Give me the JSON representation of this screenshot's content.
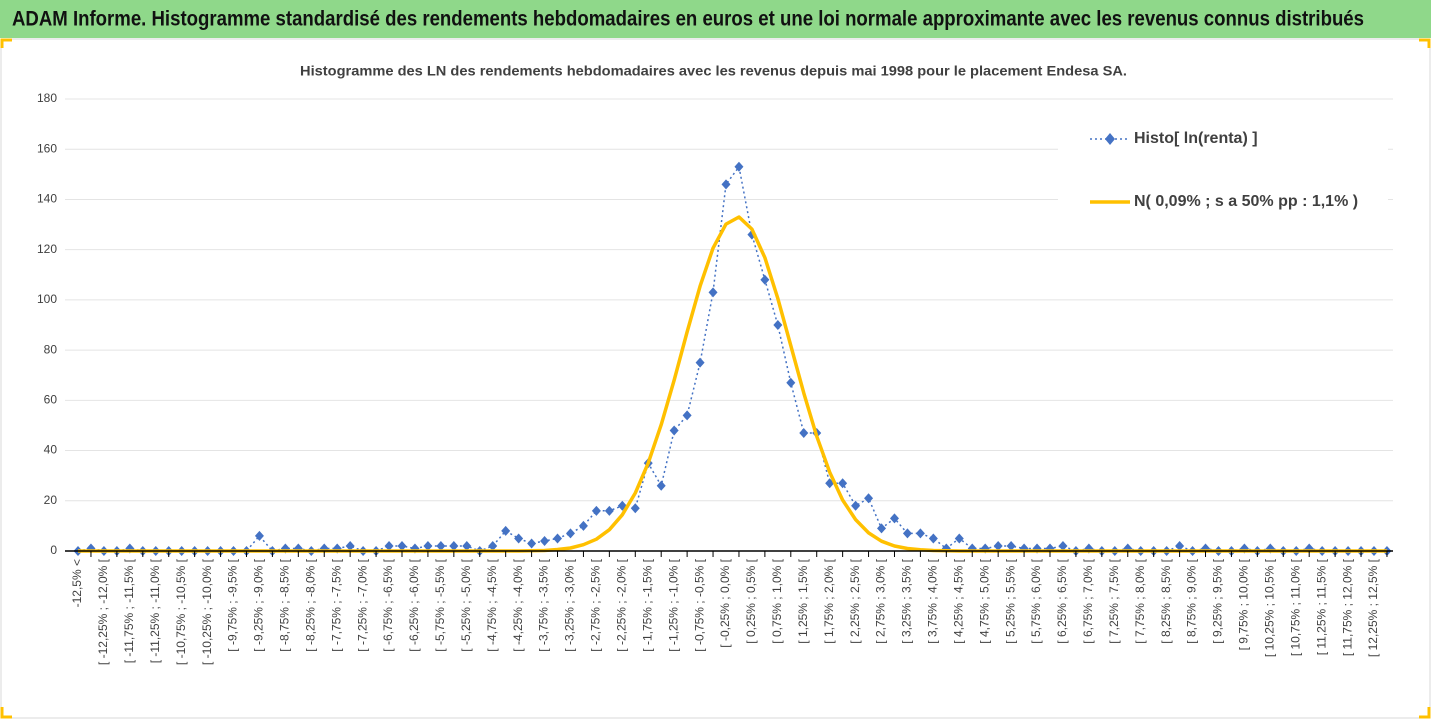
{
  "chart_data": {
    "type": "line",
    "title": "ADAM Informe. Histogramme standardisé des rendements hebdomadaires en euros et une loi normale approximante avec les revenus connus distribués",
    "subtitle": "Histogramme des LN des rendements hebdomadaires avec les revenus depuis mai 1998 pour le placement Endesa SA.",
    "categories": [
      "-12,5% <",
      null,
      "[ -12,25% ; -12,0% [",
      null,
      "[ -11,75% ; -11,5% [",
      null,
      "[ -11,25% ; -11,0% [",
      null,
      "[ -10,75% ; -10,5% [",
      null,
      "[ -10,25% ; -10,0% [",
      null,
      "[ -9,75% ; -9,5% [",
      null,
      "[ -9,25% ; -9,0% [",
      null,
      "[ -8,75% ; -8,5% [",
      null,
      "[ -8,25% ; -8,0% [",
      null,
      "[ -7,75% ; -7,5% [",
      null,
      "[ -7,25% ; -7,0% [",
      null,
      "[ -6,75% ; -6,5% [",
      null,
      "[ -6,25% ; -6,0% [",
      null,
      "[ -5,75% ; -5,5% [",
      null,
      "[ -5,25% ; -5,0% [",
      null,
      "[ -4,75% ; -4,5% [",
      null,
      "[ -4,25% ; -4,0% [",
      null,
      "[ -3,75% ; -3,5% [",
      null,
      "[ -3,25% ; -3,0% [",
      null,
      "[ -2,75% ; -2,5% [",
      null,
      "[ -2,25% ; -2,0% [",
      null,
      "[ -1,75% ; -1,5% [",
      null,
      "[ -1,25% ; -1,0% [",
      null,
      "[ -0,75% ; -0,5% [",
      null,
      "[ -0,25% ; 0,0% [",
      null,
      "[ 0,25% ; 0,5% [",
      null,
      "[ 0,75% ; 1,0% [",
      null,
      "[ 1,25% ; 1,5% [",
      null,
      "[ 1,75% ; 2,0% [",
      null,
      "[ 2,25% ; 2,5% [",
      null,
      "[ 2,75% ; 3,0% [",
      null,
      "[ 3,25% ; 3,5% [",
      null,
      "[ 3,75% ; 4,0% [",
      null,
      "[ 4,25% ; 4,5% [",
      null,
      "[ 4,75% ; 5,0% [",
      null,
      "[ 5,25% ; 5,5% [",
      null,
      "[ 5,75% ; 6,0% [",
      null,
      "[ 6,25% ; 6,5% [",
      null,
      "[ 6,75% ; 7,0% [",
      null,
      "[ 7,25% ; 7,5% [",
      null,
      "[ 7,75% ; 8,0% [",
      null,
      "[ 8,25% ; 8,5% [",
      null,
      "[ 8,75% ; 9,0% [",
      null,
      "[ 9,25% ; 9,5% [",
      null,
      "[ 9,75% ; 10,0% [",
      null,
      "[ 10,25% ; 10,5% [",
      null,
      "[ 10,75% ; 11,0% [",
      null,
      "[ 11,25% ; 11,5% [",
      null,
      "[ 11,75% ; 12,0% [",
      null,
      "[ 12,25% ; 12,5% [",
      null
    ],
    "series": [
      {
        "name": "Histo[ ln(renta) ]",
        "color": "#4472c4",
        "marker": "diamond",
        "dashed": true,
        "values": [
          0,
          1,
          0,
          0,
          1,
          0,
          0,
          0,
          0,
          0,
          0,
          0,
          0,
          0,
          6,
          0,
          1,
          1,
          0,
          1,
          1,
          2,
          0,
          0,
          2,
          2,
          1,
          2,
          2,
          2,
          2,
          0,
          2,
          8,
          5,
          3,
          4,
          5,
          7,
          10,
          16,
          16,
          18,
          17,
          35,
          26,
          48,
          54,
          75,
          103,
          146,
          153,
          126,
          108,
          90,
          67,
          47,
          47,
          27,
          27,
          18,
          21,
          9,
          13,
          7,
          7,
          5,
          1,
          5,
          1,
          1,
          2,
          2,
          1,
          1,
          1,
          2,
          0,
          1,
          0,
          0,
          1,
          0,
          0,
          0,
          2,
          0,
          1,
          0,
          0,
          1,
          0,
          1,
          0,
          0,
          1,
          0,
          0,
          0,
          0,
          0,
          0
        ]
      },
      {
        "name": "N( 0,09% ; s a 50% pp : 1,1% )",
        "color": "#ffc000",
        "marker": "none",
        "dashed": false,
        "values": [
          0,
          0,
          0,
          0,
          0,
          0,
          0,
          0,
          0,
          0,
          0,
          0,
          0,
          0,
          0,
          0,
          0,
          0,
          0,
          0,
          0,
          0,
          0,
          0,
          0,
          0,
          0,
          0,
          0,
          0,
          0,
          0,
          0,
          0,
          0,
          0.1,
          0.2,
          0.6,
          1.2,
          2.5,
          4.7,
          8.5,
          14.4,
          23.1,
          35.0,
          50.3,
          68.1,
          87.2,
          105.5,
          120.6,
          130.2,
          133,
          128.2,
          116.8,
          100.6,
          81.8,
          62.9,
          45.7,
          31.4,
          20.3,
          12.5,
          7.2,
          3.9,
          2.0,
          1.0,
          0.5,
          0.2,
          0.1,
          0,
          0,
          0,
          0,
          0,
          0,
          0,
          0,
          0,
          0,
          0,
          0,
          0,
          0,
          0,
          0,
          0,
          0,
          0,
          0,
          0,
          0,
          0,
          0,
          0,
          0,
          0,
          0,
          0,
          0,
          0,
          0,
          0,
          0
        ]
      }
    ],
    "ylim": [
      0,
      180
    ],
    "yticks": [
      0,
      20,
      40,
      60,
      80,
      100,
      120,
      140,
      160,
      180
    ],
    "grid": true,
    "legend": "top-right"
  }
}
